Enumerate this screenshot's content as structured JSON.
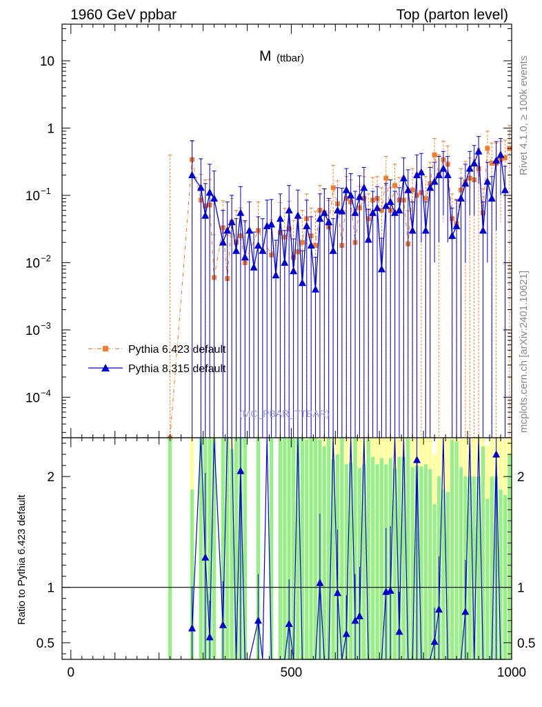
{
  "header": {
    "left": "1960 GeV ppbar",
    "right": "Top (parton level)"
  },
  "side_labels": {
    "rivet": "Rivet 4.1.0, ≥ 100k events",
    "mcplots": "mcplots.cern.ch [arXiv:2401.10621]"
  },
  "chart_data": [
    {
      "type": "line",
      "title": "M",
      "title_sub": "(ttbar)",
      "watermark": "(MC_PBAR_TTBAR)",
      "xlim": [
        -20,
        1000
      ],
      "ylim": [
        2.5e-05,
        35
      ],
      "yscale": "log",
      "yticks": [
        {
          "v": 10,
          "label": "10"
        },
        {
          "v": 1,
          "label": "1"
        },
        {
          "v": 0.1,
          "label": "10",
          "exp": "−1"
        },
        {
          "v": 0.01,
          "label": "10",
          "exp": "−2"
        },
        {
          "v": 0.001,
          "label": "10",
          "exp": "−3"
        },
        {
          "v": 0.0001,
          "label": "10",
          "exp": "−4"
        }
      ],
      "legend": [
        {
          "label": "Pythia 6.423 default",
          "color": "#f08030",
          "marker": "square",
          "dash": true
        },
        {
          "label": "Pythia 8.315 default",
          "color": "#0000cc",
          "marker": "triangle",
          "dash": false
        }
      ],
      "series": [
        {
          "name": "Pythia 6.423 default",
          "color": "#f08030",
          "x": [
            225,
            275,
            295,
            305,
            315,
            325,
            345,
            355,
            365,
            375,
            385,
            395,
            425,
            455,
            475,
            485,
            495,
            505,
            515,
            525,
            535,
            545,
            555,
            565,
            575,
            585,
            595,
            605,
            615,
            625,
            635,
            645,
            655,
            665,
            675,
            685,
            695,
            705,
            715,
            725,
            735,
            745,
            755,
            765,
            775,
            785,
            795,
            805,
            815,
            825,
            835,
            845,
            855,
            865,
            875,
            885,
            895,
            905,
            915,
            925,
            935,
            945,
            955,
            965,
            975,
            985,
            995
          ],
          "y": [
            2e-05,
            0.34,
            0.085,
            0.07,
            0.072,
            0.006,
            0.033,
            0.0058,
            0.04,
            0.02,
            0.025,
            0.01,
            0.03,
            0.013,
            0.028,
            0.024,
            0.032,
            0.012,
            0.0145,
            0.02,
            0.045,
            0.025,
            0.018,
            0.06,
            0.055,
            0.034,
            0.13,
            0.075,
            0.018,
            0.09,
            0.08,
            0.02,
            0.065,
            0.09,
            0.045,
            0.085,
            0.09,
            0.06,
            0.18,
            0.06,
            0.14,
            0.085,
            0.085,
            0.019,
            0.12,
            0.1,
            0.11,
            0.09,
            0.15,
            0.4,
            0.2,
            0.34,
            0.29,
            0.045,
            0.038,
            0.12,
            0.16,
            0.18,
            0.17,
            0.25,
            0.055,
            0.5,
            0.3,
            0.3,
            0.34,
            0.36,
            0.5
          ],
          "err": [
            0.4,
            0.3,
            0.12,
            0.1,
            0.1,
            0.02,
            0.05,
            0.02,
            0.05,
            0.04,
            0.04,
            0.03,
            0.05,
            0.03,
            0.05,
            0.04,
            0.05,
            0.03,
            0.03,
            0.04,
            0.06,
            0.04,
            0.04,
            0.08,
            0.07,
            0.05,
            0.15,
            0.09,
            0.04,
            0.1,
            0.09,
            0.04,
            0.07,
            0.1,
            0.06,
            0.1,
            0.1,
            0.07,
            0.2,
            0.07,
            0.15,
            0.1,
            0.1,
            0.04,
            0.13,
            0.11,
            0.12,
            0.1,
            0.16,
            0.3,
            0.2,
            0.3,
            0.25,
            0.06,
            0.05,
            0.13,
            0.16,
            0.18,
            0.17,
            0.25,
            0.07,
            0.4,
            0.3,
            0.3,
            0.3,
            0.3,
            0.6
          ]
        },
        {
          "name": "Pythia 8.315 default",
          "color": "#0000cc",
          "x": [
            275,
            295,
            305,
            315,
            325,
            345,
            355,
            365,
            375,
            385,
            395,
            405,
            415,
            425,
            435,
            445,
            455,
            465,
            475,
            485,
            495,
            505,
            515,
            525,
            535,
            545,
            555,
            565,
            575,
            585,
            595,
            605,
            615,
            625,
            635,
            645,
            655,
            665,
            675,
            685,
            695,
            705,
            715,
            725,
            735,
            745,
            755,
            765,
            775,
            785,
            795,
            805,
            815,
            825,
            835,
            845,
            855,
            865,
            875,
            885,
            895,
            905,
            915,
            925,
            935,
            945,
            955,
            965,
            975,
            985
          ],
          "y": [
            0.2,
            0.13,
            0.05,
            0.11,
            0.09,
            0.02,
            0.03,
            0.04,
            0.015,
            0.055,
            0.012,
            0.03,
            0.0085,
            0.018,
            0.015,
            0.035,
            0.037,
            0.0065,
            0.045,
            0.01,
            0.06,
            0.0075,
            0.05,
            0.005,
            0.035,
            0.018,
            0.004,
            0.045,
            0.055,
            0.04,
            0.015,
            0.06,
            0.058,
            0.12,
            0.1,
            0.055,
            0.095,
            0.13,
            0.022,
            0.055,
            0.065,
            0.008,
            0.07,
            0.08,
            0.055,
            0.06,
            0.18,
            0.12,
            0.03,
            0.2,
            0.22,
            0.03,
            0.13,
            0.16,
            0.2,
            0.25,
            0.2,
            0.025,
            0.035,
            0.09,
            0.15,
            0.25,
            0.3,
            0.45,
            0.03,
            0.16,
            0.09,
            0.33,
            0.4,
            0.12
          ],
          "err": [
            0.45,
            0.22,
            0.1,
            0.18,
            0.14,
            0.04,
            0.05,
            0.06,
            0.03,
            0.08,
            0.03,
            0.05,
            0.02,
            0.03,
            0.03,
            0.05,
            0.05,
            0.015,
            0.06,
            0.02,
            0.08,
            0.015,
            0.07,
            0.01,
            0.05,
            0.03,
            0.008,
            0.06,
            0.07,
            0.05,
            0.03,
            0.07,
            0.07,
            0.13,
            0.11,
            0.06,
            0.1,
            0.13,
            0.04,
            0.06,
            0.07,
            0.015,
            0.08,
            0.09,
            0.06,
            0.07,
            0.18,
            0.12,
            0.05,
            0.2,
            0.2,
            0.05,
            0.13,
            0.15,
            0.18,
            0.2,
            0.18,
            0.04,
            0.05,
            0.09,
            0.14,
            0.2,
            0.25,
            0.3,
            0.05,
            0.15,
            0.1,
            0.3,
            0.3,
            0.15
          ]
        }
      ]
    },
    {
      "type": "line",
      "ylabel": "Ratio to Pythia 6.423 default",
      "xlim": [
        -20,
        1000
      ],
      "ylim": [
        0.35,
        2.35
      ],
      "yticks": [
        {
          "v": 0.5,
          "label": "0.5"
        },
        {
          "v": 1,
          "label": "1"
        },
        {
          "v": 2,
          "label": "2"
        }
      ],
      "xticks": [
        {
          "v": 0,
          "label": "0"
        },
        {
          "v": 500,
          "label": "500"
        },
        {
          "v": 1000,
          "label": "1000"
        }
      ],
      "band_colors": {
        "green": "#99ee88",
        "yellow": "#ffff99"
      },
      "ratio_x": [
        275,
        295,
        305,
        315,
        325,
        345,
        355,
        365,
        375,
        385,
        395,
        405,
        425,
        435,
        445,
        455,
        465,
        475,
        485,
        495,
        505,
        515,
        525,
        535,
        545,
        555,
        565,
        575,
        585,
        595,
        605,
        615,
        625,
        635,
        645,
        655,
        665,
        675,
        685,
        695,
        705,
        715,
        725,
        735,
        745,
        755,
        765,
        775,
        785,
        795,
        805,
        815,
        825,
        835,
        845,
        855,
        865,
        875,
        885,
        895,
        905,
        915,
        925,
        935,
        945,
        955,
        965,
        975,
        985
      ],
      "ratio_y": [
        0.63,
        2.35,
        1.27,
        0.55,
        2.35,
        0.66,
        2.35,
        2.35,
        0.3,
        2.05,
        0.3,
        0.3,
        0.7,
        0.3,
        2.35,
        0.3,
        0.3,
        0.3,
        0.3,
        0.67,
        0.3,
        2.35,
        0.3,
        0.3,
        0.3,
        0.3,
        1.04,
        0.3,
        0.3,
        2.35,
        0.95,
        0.3,
        0.58,
        2.35,
        0.7,
        0.74,
        2.35,
        0.3,
        0.3,
        0.3,
        0.3,
        0.96,
        0.97,
        2.35,
        0.6,
        2.35,
        0.3,
        0.3,
        2.15,
        0.3,
        0.3,
        0.3,
        0.51,
        0.8,
        2.35,
        0.3,
        0.3,
        0.3,
        0.3,
        0.78,
        2.35,
        0.3,
        2.35,
        0.3,
        0.3,
        0.3,
        2.2,
        0.3,
        0.3
      ]
    }
  ]
}
